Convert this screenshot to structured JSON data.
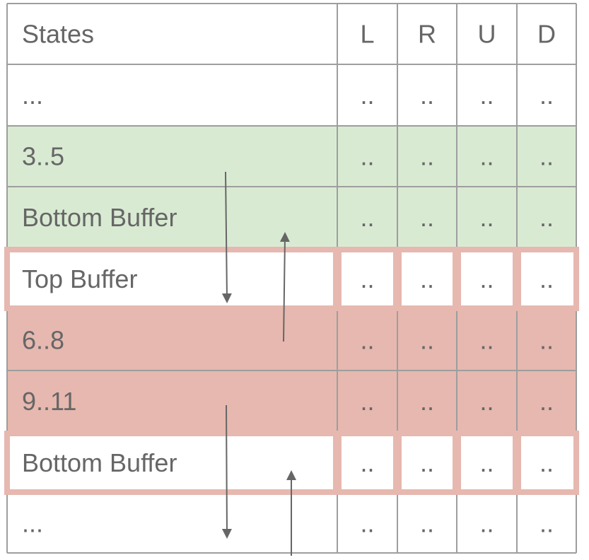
{
  "table": {
    "headers": [
      "States",
      "L",
      "R",
      "U",
      "D"
    ],
    "rows": [
      {
        "label": "...",
        "cells": [
          "..",
          "..",
          "..",
          ".."
        ],
        "fill": "white"
      },
      {
        "label": "3..5",
        "cells": [
          "..",
          "..",
          "..",
          ".."
        ],
        "fill": "green"
      },
      {
        "label": "Bottom Buffer",
        "cells": [
          "..",
          "..",
          "..",
          ".."
        ],
        "fill": "green"
      },
      {
        "label": "Top Buffer",
        "cells": [
          "..",
          "..",
          "..",
          ".."
        ],
        "fill": "white",
        "highlight": true
      },
      {
        "label": "6..8",
        "cells": [
          "..",
          "..",
          "..",
          ".."
        ],
        "fill": "red"
      },
      {
        "label": "9..11",
        "cells": [
          "..",
          "..",
          "..",
          ".."
        ],
        "fill": "red"
      },
      {
        "label": "Bottom Buffer",
        "cells": [
          "..",
          "..",
          "..",
          ".."
        ],
        "fill": "white",
        "highlight": true
      },
      {
        "label": "...",
        "cells": [
          "..",
          "..",
          "..",
          ".."
        ],
        "fill": "white"
      }
    ]
  },
  "colors": {
    "green": "#d9ead3",
    "red": "#e6b8af",
    "white": "#ffffff",
    "highlight_border": "#e6b8af",
    "grid": "#9e9e9e",
    "text": "#666666",
    "arrow": "#666666"
  }
}
